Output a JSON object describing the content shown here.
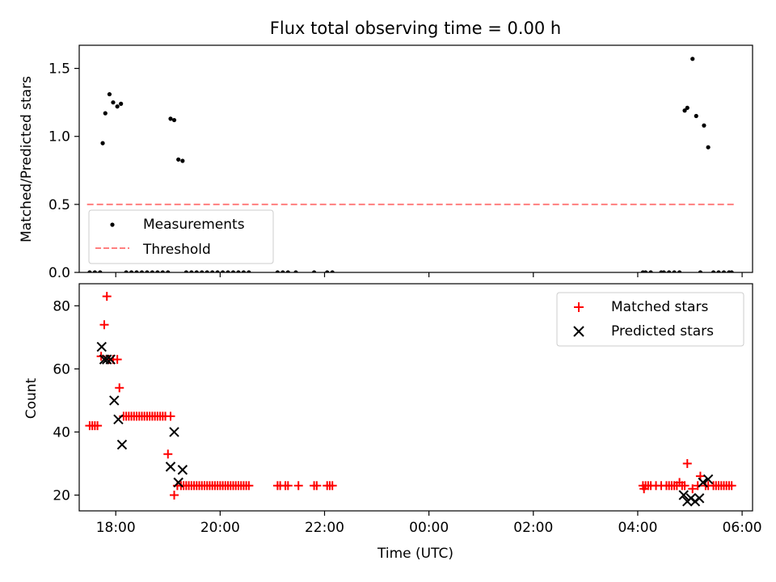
{
  "figure": {
    "title": "Flux total observing time = 0.00 h"
  },
  "chart_data": [
    {
      "type": "scatter",
      "ylabel": "Matched/Predicted stars",
      "xlabel": "",
      "xlim": [
        17.3,
        30.2
      ],
      "ylim": [
        0,
        1.67
      ],
      "yticks": [
        0.0,
        0.5,
        1.0,
        1.5
      ],
      "ytick_labels": [
        "0.0",
        "0.5",
        "1.0",
        "1.5"
      ],
      "xticks": [
        18,
        20,
        22,
        24,
        26,
        28,
        30
      ],
      "xtick_labels": [
        "",
        "",
        "",
        "",
        "",
        "",
        ""
      ],
      "legend": {
        "placement": "lower-left",
        "entries": [
          "Measurements",
          "Threshold"
        ]
      },
      "series": [
        {
          "name": "Measurements",
          "marker": "dot",
          "color": "#000000",
          "x": [
            17.5,
            17.6,
            17.7,
            17.75,
            17.8,
            17.88,
            17.95,
            18.03,
            18.1,
            18.2,
            18.3,
            18.4,
            18.5,
            18.6,
            18.7,
            18.8,
            18.9,
            19.0,
            19.05,
            19.12,
            19.2,
            19.28,
            19.35,
            19.45,
            19.55,
            19.65,
            19.75,
            19.85,
            19.95,
            20.05,
            20.15,
            20.25,
            20.35,
            20.45,
            20.55,
            21.1,
            21.2,
            21.3,
            21.45,
            21.8,
            22.05,
            22.15,
            28.1,
            28.15,
            28.25,
            28.45,
            28.5,
            28.6,
            28.7,
            28.8,
            28.9,
            28.95,
            29.05,
            29.12,
            29.2,
            29.27,
            29.35,
            29.45,
            29.55,
            29.65,
            29.75,
            29.8
          ],
          "y": [
            0,
            0,
            0,
            0.95,
            1.17,
            1.31,
            1.25,
            1.22,
            1.24,
            0,
            0,
            0,
            0,
            0,
            0,
            0,
            0,
            0,
            1.13,
            1.12,
            0.83,
            0.82,
            0,
            0,
            0,
            0,
            0,
            0,
            0,
            0,
            0,
            0,
            0,
            0,
            0,
            0,
            0,
            0,
            0,
            0,
            0,
            0,
            0,
            0,
            0,
            0,
            0,
            0,
            0,
            0,
            1.19,
            1.21,
            1.57,
            1.15,
            0,
            1.08,
            0.92,
            0,
            0,
            0,
            0,
            0
          ]
        },
        {
          "name": "Threshold",
          "style": "dashed",
          "color": "#ff7f7f",
          "x": [
            17.45,
            29.85
          ],
          "y": [
            0.5,
            0.5
          ]
        }
      ]
    },
    {
      "type": "scatter",
      "ylabel": "Count",
      "xlabel": "Time (UTC)",
      "xlim": [
        17.3,
        30.2
      ],
      "ylim": [
        15,
        87
      ],
      "yticks": [
        20,
        40,
        60,
        80
      ],
      "ytick_labels": [
        "20",
        "40",
        "60",
        "80"
      ],
      "xticks": [
        18,
        20,
        22,
        24,
        26,
        28,
        30
      ],
      "xtick_labels": [
        "18:00",
        "20:00",
        "22:00",
        "00:00",
        "02:00",
        "04:00",
        "06:00"
      ],
      "legend": {
        "placement": "upper-right",
        "entries": [
          "Matched stars",
          "Predicted stars"
        ]
      },
      "series": [
        {
          "name": "Matched stars",
          "marker": "plus",
          "color": "#ff0000",
          "x": [
            17.5,
            17.55,
            17.6,
            17.65,
            17.72,
            17.78,
            17.83,
            17.88,
            17.95,
            18.03,
            18.07,
            18.15,
            18.2,
            18.25,
            18.3,
            18.35,
            18.4,
            18.45,
            18.5,
            18.55,
            18.6,
            18.65,
            18.7,
            18.75,
            18.8,
            18.85,
            18.9,
            18.95,
            19.0,
            19.05,
            19.12,
            19.18,
            19.25,
            19.3,
            19.35,
            19.4,
            19.45,
            19.5,
            19.55,
            19.6,
            19.65,
            19.7,
            19.75,
            19.8,
            19.85,
            19.9,
            19.95,
            20.0,
            20.05,
            20.1,
            20.15,
            20.2,
            20.25,
            20.3,
            20.35,
            20.4,
            20.45,
            20.5,
            20.55,
            21.1,
            21.15,
            21.25,
            21.3,
            21.5,
            21.8,
            21.85,
            22.05,
            22.1,
            22.15,
            28.1,
            28.12,
            28.15,
            28.2,
            28.25,
            28.35,
            28.45,
            28.55,
            28.6,
            28.65,
            28.7,
            28.75,
            28.8,
            28.85,
            28.9,
            28.95,
            29.05,
            29.15,
            29.2,
            29.3,
            29.35,
            29.45,
            29.5,
            29.55,
            29.6,
            29.65,
            29.7,
            29.75,
            29.8
          ],
          "y": [
            42,
            42,
            42,
            42,
            64,
            74,
            83,
            63,
            63,
            63,
            54,
            45,
            45,
            45,
            45,
            45,
            45,
            45,
            45,
            45,
            45,
            45,
            45,
            45,
            45,
            45,
            45,
            45,
            33,
            45,
            20,
            23,
            23,
            23,
            23,
            23,
            23,
            23,
            23,
            23,
            23,
            23,
            23,
            23,
            23,
            23,
            23,
            23,
            23,
            23,
            23,
            23,
            23,
            23,
            23,
            23,
            23,
            23,
            23,
            23,
            23,
            23,
            23,
            23,
            23,
            23,
            23,
            23,
            23,
            23,
            22,
            23,
            23,
            23,
            23,
            23,
            23,
            23,
            23,
            23,
            23,
            24,
            23,
            23,
            30,
            22,
            23,
            26,
            23,
            23,
            23,
            23,
            23,
            23,
            23,
            23,
            23,
            23
          ]
        },
        {
          "name": "Predicted stars",
          "marker": "x",
          "color": "#000000",
          "x": [
            17.73,
            17.78,
            17.83,
            17.9,
            17.97,
            18.05,
            18.12,
            19.05,
            19.12,
            19.2,
            19.28,
            28.88,
            28.95,
            29.02,
            29.1,
            29.18,
            29.25,
            29.35
          ],
          "y": [
            67,
            63,
            63,
            63,
            50,
            44,
            36,
            29,
            40,
            24,
            28,
            20,
            18,
            19,
            18,
            19,
            24,
            25
          ]
        }
      ]
    }
  ]
}
